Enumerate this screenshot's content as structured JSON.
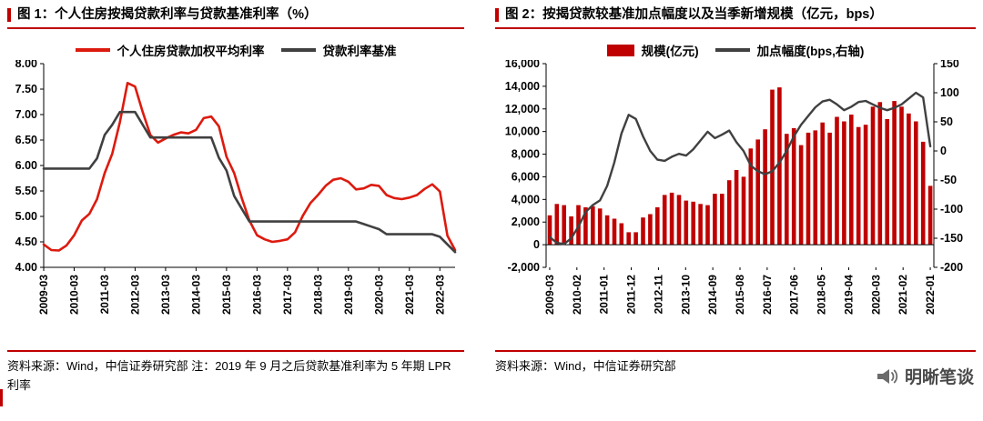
{
  "colors": {
    "accent": "#c00000",
    "red_line": "#dd1a0e",
    "dark_line": "#404040"
  },
  "fig1": {
    "title": "图 1：个人住房按揭贷款利率与贷款基准利率（%）",
    "legend": [
      {
        "label": "个人住房贷款加权平均利率",
        "type": "line",
        "color": "#dd1a0e"
      },
      {
        "label": "贷款利率基准",
        "type": "line",
        "color": "#404040"
      }
    ],
    "source": "资料来源：Wind，中信证券研究部 注：2019 年 9 月之后贷款基准利率为 5 年期 LPR 利率"
  },
  "fig2": {
    "title": "图 2：按揭贷款较基准加点幅度以及当季新增规模（亿元，bps）",
    "legend": [
      {
        "label": "规模(亿元)",
        "type": "bar",
        "color": "#c00000"
      },
      {
        "label": "加点幅度(bps,右轴)",
        "type": "line",
        "color": "#404040"
      }
    ],
    "source": "资料来源：Wind，中信证券研究部"
  },
  "footer": {
    "brand": "明晰笔谈"
  },
  "chart_data": [
    {
      "type": "line",
      "title": "个人住房按揭贷款利率与贷款基准利率（%）",
      "ylim": [
        4.0,
        8.0
      ],
      "yticks": [
        "8.00",
        "7.50",
        "7.00",
        "6.50",
        "6.00",
        "5.50",
        "5.00",
        "4.50",
        "4.00"
      ],
      "grid": false,
      "legend_position": "top",
      "x_tick_every": 4,
      "x_tick_labels": [
        "2009-03",
        "2010-03",
        "2011-03",
        "2012-03",
        "2013-03",
        "2014-03",
        "2015-03",
        "2016-03",
        "2017-03",
        "2018-03",
        "2019-03",
        "2020-03",
        "2021-03",
        "2022-03"
      ],
      "x": [
        "2009-03",
        "2009-06",
        "2009-09",
        "2009-12",
        "2010-03",
        "2010-06",
        "2010-09",
        "2010-12",
        "2011-03",
        "2011-06",
        "2011-09",
        "2011-12",
        "2012-03",
        "2012-06",
        "2012-09",
        "2012-12",
        "2013-03",
        "2013-06",
        "2013-09",
        "2013-12",
        "2014-03",
        "2014-06",
        "2014-09",
        "2014-12",
        "2015-03",
        "2015-06",
        "2015-09",
        "2015-12",
        "2016-03",
        "2016-06",
        "2016-09",
        "2016-12",
        "2017-03",
        "2017-06",
        "2017-09",
        "2017-12",
        "2018-03",
        "2018-06",
        "2018-09",
        "2018-12",
        "2019-03",
        "2019-06",
        "2019-09",
        "2019-12",
        "2020-03",
        "2020-06",
        "2020-09",
        "2020-12",
        "2021-03",
        "2021-06",
        "2021-09",
        "2021-12",
        "2022-03",
        "2022-06",
        "2022-09"
      ],
      "series": [
        {
          "name": "个人住房贷款加权平均利率",
          "color": "#dd1a0e",
          "values": [
            4.45,
            4.34,
            4.33,
            4.43,
            4.63,
            4.92,
            5.05,
            5.34,
            5.85,
            6.23,
            6.85,
            7.62,
            7.55,
            7.05,
            6.6,
            6.45,
            6.53,
            6.6,
            6.65,
            6.63,
            6.7,
            6.93,
            6.96,
            6.77,
            6.17,
            5.85,
            5.36,
            4.92,
            4.63,
            4.55,
            4.5,
            4.52,
            4.55,
            4.69,
            5.01,
            5.26,
            5.42,
            5.6,
            5.72,
            5.75,
            5.68,
            5.53,
            5.55,
            5.62,
            5.6,
            5.42,
            5.36,
            5.34,
            5.37,
            5.42,
            5.54,
            5.63,
            5.49,
            4.62,
            4.34
          ]
        },
        {
          "name": "贷款利率基准",
          "color": "#404040",
          "values": [
            5.94,
            5.94,
            5.94,
            5.94,
            5.94,
            5.94,
            5.94,
            6.14,
            6.6,
            6.8,
            7.05,
            7.05,
            7.05,
            6.8,
            6.55,
            6.55,
            6.55,
            6.55,
            6.55,
            6.55,
            6.55,
            6.55,
            6.55,
            6.15,
            5.9,
            5.4,
            5.15,
            4.9,
            4.9,
            4.9,
            4.9,
            4.9,
            4.9,
            4.9,
            4.9,
            4.9,
            4.9,
            4.9,
            4.9,
            4.9,
            4.9,
            4.9,
            4.85,
            4.8,
            4.75,
            4.65,
            4.65,
            4.65,
            4.65,
            4.65,
            4.65,
            4.65,
            4.6,
            4.45,
            4.3
          ]
        }
      ]
    },
    {
      "type": "combo",
      "title": "按揭贷款较基准加点幅度以及当季新增规模（亿元，bps）",
      "ylim_left": [
        -2000,
        16000
      ],
      "yticks_left": [
        "16,000",
        "14,000",
        "12,000",
        "10,000",
        "8,000",
        "6,000",
        "4,000",
        "2,000",
        "0",
        "-2,000"
      ],
      "ylim_right": [
        -200,
        150
      ],
      "yticks_right": [
        "150",
        "100",
        "50",
        "0",
        "-50",
        "-100",
        "-150",
        "-200"
      ],
      "grid": false,
      "x_tick_labels": [
        "2009-03",
        "2010-02",
        "2011-01",
        "2011-12",
        "2012-11",
        "2013-10",
        "2014-09",
        "2015-08",
        "2016-07",
        "2017-06",
        "2018-05",
        "2019-04",
        "2020-03",
        "2021-02",
        "2022-01"
      ],
      "bars": {
        "name": "规模(亿元)",
        "axis": "left",
        "color": "#c00000",
        "values": [
          2600,
          3600,
          3500,
          2500,
          3500,
          3300,
          3400,
          3200,
          2600,
          2300,
          1900,
          1100,
          1100,
          2400,
          2700,
          3300,
          4400,
          4600,
          4400,
          3900,
          3800,
          3600,
          3500,
          4500,
          4500,
          5700,
          6600,
          6000,
          8500,
          9300,
          10200,
          13700,
          13900,
          9800,
          10300,
          8800,
          9900,
          10100,
          10800,
          9900,
          11300,
          10900,
          11500,
          10400,
          10600,
          12200,
          12600,
          11100,
          12700,
          12200,
          11600,
          10900,
          9100,
          5200
        ]
      },
      "line": {
        "name": "加点幅度(bps,右轴)",
        "axis": "right",
        "color": "#404040",
        "values": [
          -148,
          -158,
          -160,
          -150,
          -130,
          -105,
          -93,
          -85,
          -60,
          -20,
          30,
          62,
          55,
          25,
          0,
          -15,
          -17,
          -10,
          -5,
          -8,
          3,
          18,
          33,
          22,
          28,
          35,
          15,
          0,
          -25,
          -35,
          -40,
          -35,
          -20,
          0,
          25,
          45,
          60,
          75,
          85,
          88,
          80,
          70,
          76,
          84,
          86,
          80,
          74,
          70,
          74,
          80,
          90,
          100,
          92,
          8
        ]
      }
    }
  ]
}
